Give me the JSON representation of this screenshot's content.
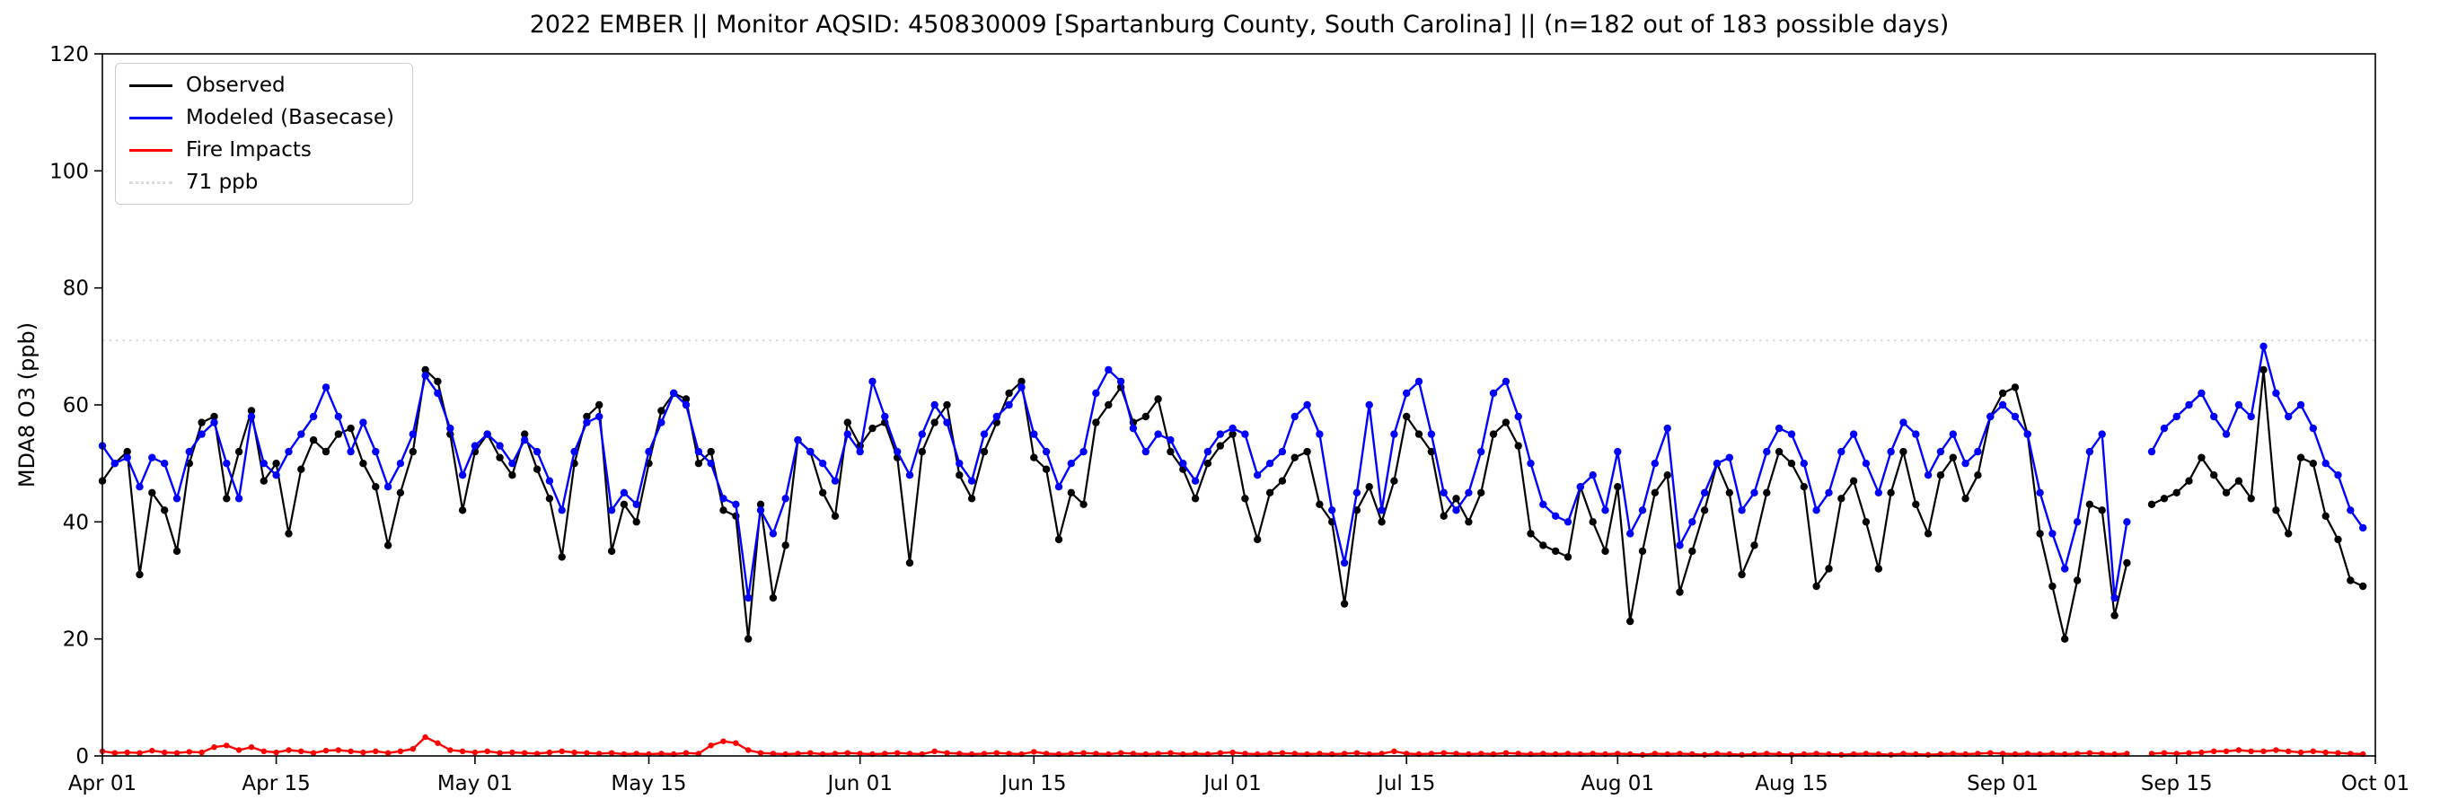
{
  "chart_data": {
    "type": "line",
    "title": "2022 EMBER || Monitor AQSID: 450830009 [Spartanburg County, South Carolina] || (n=182 out of 183 possible days)",
    "ylabel": "MDA8 O3 (ppb)",
    "ylim": [
      0,
      120
    ],
    "yticks": [
      0,
      20,
      40,
      60,
      80,
      100,
      120
    ],
    "grid": false,
    "x_start_date": "2022-04-01",
    "x_domain_days": 183,
    "x_ticks": [
      {
        "label": "Apr 01",
        "day": 0
      },
      {
        "label": "Apr 15",
        "day": 14
      },
      {
        "label": "May 01",
        "day": 30
      },
      {
        "label": "May 15",
        "day": 44
      },
      {
        "label": "Jun 01",
        "day": 61
      },
      {
        "label": "Jun 15",
        "day": 75
      },
      {
        "label": "Jul 01",
        "day": 91
      },
      {
        "label": "Jul 15",
        "day": 105
      },
      {
        "label": "Aug 01",
        "day": 122
      },
      {
        "label": "Aug 15",
        "day": 136
      },
      {
        "label": "Sep 01",
        "day": 153
      },
      {
        "label": "Sep 15",
        "day": 167
      },
      {
        "label": "Oct 01",
        "day": 183
      }
    ],
    "threshold": {
      "value": 71,
      "label": "71 ppb",
      "color": "#d9d9d9",
      "style": "dotted"
    },
    "legend": {
      "position": "upper left",
      "entries": [
        {
          "label": "Observed",
          "slug": "observed",
          "color": "#000000",
          "style": "solid"
        },
        {
          "label": "Modeled (Basecase)",
          "slug": "modeled-basecase",
          "color": "#0000ff",
          "style": "solid"
        },
        {
          "label": "Fire Impacts",
          "slug": "fire-impacts",
          "color": "#ff0000",
          "style": "solid"
        },
        {
          "label": "71 ppb",
          "slug": "threshold-71-ppb",
          "color": "#d9d9d9",
          "style": "dotted"
        }
      ]
    },
    "n_days_text": "182 out of 183 possible days",
    "series": [
      {
        "name": "Observed",
        "slug": "observed",
        "color": "#000000",
        "marker": "circle",
        "marker_radius": 4.2,
        "line_width": 2.2,
        "values": [
          47,
          50,
          52,
          31,
          45,
          42,
          35,
          50,
          57,
          58,
          44,
          52,
          59,
          47,
          50,
          38,
          49,
          54,
          52,
          55,
          56,
          50,
          46,
          36,
          45,
          52,
          66,
          64,
          55,
          42,
          52,
          55,
          51,
          48,
          55,
          49,
          44,
          34,
          50,
          58,
          60,
          35,
          43,
          40,
          50,
          59,
          62,
          61,
          50,
          52,
          42,
          41,
          20,
          43,
          27,
          36,
          54,
          52,
          45,
          41,
          57,
          53,
          56,
          57,
          51,
          33,
          52,
          57,
          60,
          48,
          44,
          52,
          57,
          62,
          64,
          51,
          49,
          37,
          45,
          43,
          57,
          60,
          63,
          57,
          58,
          61,
          52,
          49,
          44,
          50,
          53,
          55,
          44,
          37,
          45,
          47,
          51,
          52,
          43,
          40,
          26,
          42,
          46,
          40,
          47,
          58,
          55,
          52,
          41,
          44,
          40,
          45,
          55,
          57,
          53,
          38,
          36,
          35,
          34,
          46,
          40,
          35,
          46,
          23,
          35,
          45,
          48,
          28,
          35,
          42,
          50,
          45,
          31,
          36,
          45,
          52,
          50,
          46,
          29,
          32,
          44,
          47,
          40,
          32,
          45,
          52,
          43,
          38,
          48,
          51,
          44,
          48,
          58,
          62,
          63,
          55,
          38,
          29,
          20,
          30,
          43,
          42,
          24,
          33,
          null,
          43,
          44,
          45,
          47,
          51,
          48,
          45,
          47,
          44,
          66,
          42,
          38,
          51,
          50,
          41,
          37,
          30,
          29
        ]
      },
      {
        "name": "Modeled (Basecase)",
        "slug": "modeled-basecase",
        "color": "#0000ff",
        "marker": "circle",
        "marker_radius": 4.2,
        "line_width": 2.4,
        "values": [
          53,
          50,
          51,
          46,
          51,
          50,
          44,
          52,
          55,
          57,
          50,
          44,
          58,
          50,
          48,
          52,
          55,
          58,
          63,
          58,
          52,
          57,
          52,
          46,
          50,
          55,
          65,
          62,
          56,
          48,
          53,
          55,
          53,
          50,
          54,
          52,
          47,
          42,
          52,
          57,
          58,
          42,
          45,
          43,
          52,
          57,
          62,
          60,
          52,
          50,
          44,
          43,
          27,
          42,
          38,
          44,
          54,
          52,
          50,
          47,
          55,
          52,
          64,
          58,
          52,
          48,
          55,
          60,
          57,
          50,
          47,
          55,
          58,
          60,
          63,
          55,
          52,
          46,
          50,
          52,
          62,
          66,
          64,
          56,
          52,
          55,
          54,
          50,
          47,
          52,
          55,
          56,
          55,
          48,
          50,
          52,
          58,
          60,
          55,
          42,
          33,
          45,
          60,
          42,
          55,
          62,
          64,
          55,
          45,
          42,
          45,
          52,
          62,
          64,
          58,
          50,
          43,
          41,
          40,
          46,
          48,
          42,
          52,
          38,
          42,
          50,
          56,
          36,
          40,
          45,
          50,
          51,
          42,
          45,
          52,
          56,
          55,
          50,
          42,
          45,
          52,
          55,
          50,
          45,
          52,
          57,
          55,
          48,
          52,
          55,
          50,
          52,
          58,
          60,
          58,
          55,
          45,
          38,
          32,
          40,
          52,
          55,
          27,
          40,
          null,
          52,
          56,
          58,
          60,
          62,
          58,
          55,
          60,
          58,
          70,
          62,
          58,
          60,
          56,
          50,
          48,
          42,
          39
        ]
      },
      {
        "name": "Fire Impacts",
        "slug": "fire-impacts",
        "color": "#ff0000",
        "marker": "circle",
        "marker_radius": 3.2,
        "line_width": 2.4,
        "values": [
          0.8,
          0.5,
          0.6,
          0.5,
          0.9,
          0.6,
          0.5,
          0.7,
          0.6,
          1.5,
          1.8,
          1.0,
          1.5,
          0.8,
          0.6,
          1.0,
          0.8,
          0.5,
          0.9,
          1.0,
          0.8,
          0.6,
          0.8,
          0.5,
          0.8,
          1.2,
          3.2,
          2.2,
          1.0,
          0.8,
          0.6,
          0.8,
          0.5,
          0.6,
          0.5,
          0.4,
          0.6,
          0.8,
          0.6,
          0.5,
          0.4,
          0.5,
          0.3,
          0.4,
          0.3,
          0.4,
          0.3,
          0.5,
          0.4,
          1.8,
          2.5,
          2.2,
          1.0,
          0.5,
          0.4,
          0.3,
          0.4,
          0.5,
          0.3,
          0.4,
          0.5,
          0.4,
          0.3,
          0.4,
          0.5,
          0.4,
          0.3,
          0.8,
          0.5,
          0.4,
          0.3,
          0.4,
          0.5,
          0.4,
          0.3,
          0.7,
          0.4,
          0.3,
          0.4,
          0.5,
          0.4,
          0.3,
          0.5,
          0.4,
          0.3,
          0.4,
          0.5,
          0.3,
          0.4,
          0.3,
          0.5,
          0.6,
          0.4,
          0.3,
          0.4,
          0.5,
          0.4,
          0.3,
          0.4,
          0.3,
          0.4,
          0.5,
          0.3,
          0.4,
          0.8,
          0.4,
          0.3,
          0.4,
          0.5,
          0.4,
          0.3,
          0.4,
          0.3,
          0.5,
          0.4,
          0.3,
          0.4,
          0.3,
          0.4,
          0.3,
          0.4,
          0.3,
          0.4,
          0.3,
          0.2,
          0.4,
          0.3,
          0.4,
          0.3,
          0.2,
          0.4,
          0.3,
          0.2,
          0.3,
          0.4,
          0.3,
          0.2,
          0.3,
          0.4,
          0.3,
          0.2,
          0.3,
          0.4,
          0.3,
          0.2,
          0.4,
          0.3,
          0.2,
          0.3,
          0.4,
          0.3,
          0.4,
          0.5,
          0.4,
          0.3,
          0.4,
          0.3,
          0.4,
          0.3,
          0.4,
          0.5,
          0.4,
          0.3,
          0.4,
          null,
          0.4,
          0.5,
          0.4,
          0.5,
          0.6,
          0.8,
          0.8,
          1.0,
          0.8,
          0.8,
          1.0,
          0.8,
          0.6,
          0.8,
          0.6,
          0.5,
          0.4,
          0.3
        ]
      }
    ]
  }
}
